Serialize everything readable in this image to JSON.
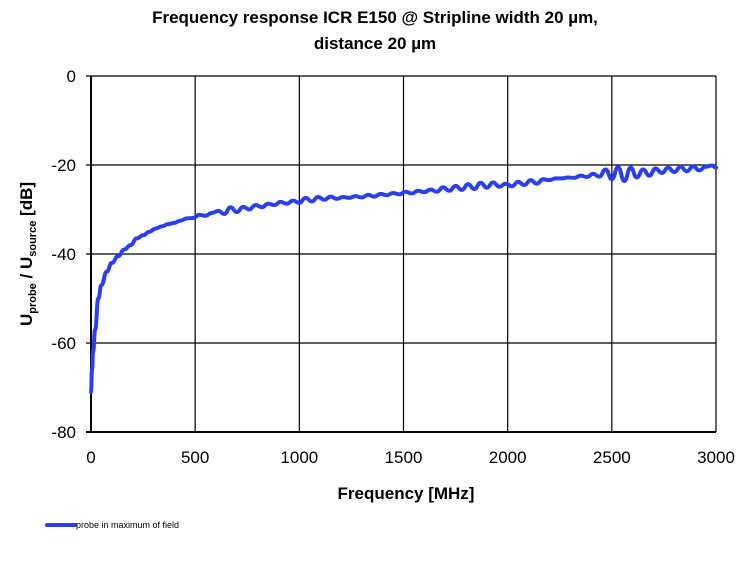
{
  "chart_data": {
    "type": "line",
    "title": [
      "Frequency response ICR E150 @ Stripline  width  20 µm,",
      "distance 20 µm"
    ],
    "xlabel": "Frequency [MHz]",
    "ylabel": {
      "main": "U",
      "sub1": "probe",
      "sep": " / U",
      "sub2": "source",
      "unit": " [dB]"
    },
    "xlim": [
      0,
      3000
    ],
    "ylim": [
      -80,
      0
    ],
    "xticks": [
      0,
      500,
      1000,
      1500,
      2000,
      2500,
      3000
    ],
    "yticks": [
      0,
      -20,
      -40,
      -60,
      -80
    ],
    "grid": true,
    "legend_position": "bottom-left",
    "series": [
      {
        "name": "probe in maximum of field",
        "color": "#2a3ff0",
        "x": [
          0,
          5,
          10,
          20,
          35,
          50,
          75,
          100,
          130,
          160,
          190,
          220,
          250,
          280,
          310,
          340,
          370,
          400,
          430,
          460,
          490,
          520,
          550,
          580,
          610,
          640,
          670,
          700,
          730,
          760,
          790,
          820,
          850,
          880,
          910,
          940,
          970,
          1000,
          1030,
          1060,
          1090,
          1120,
          1150,
          1180,
          1210,
          1240,
          1270,
          1300,
          1330,
          1360,
          1390,
          1420,
          1450,
          1480,
          1510,
          1540,
          1570,
          1600,
          1630,
          1660,
          1690,
          1720,
          1750,
          1780,
          1810,
          1840,
          1870,
          1900,
          1930,
          1960,
          1990,
          2020,
          2050,
          2080,
          2110,
          2140,
          2170,
          2200,
          2230,
          2260,
          2290,
          2320,
          2350,
          2380,
          2410,
          2440,
          2470,
          2500,
          2530,
          2560,
          2590,
          2620,
          2650,
          2680,
          2710,
          2740,
          2770,
          2800,
          2830,
          2860,
          2890,
          2920,
          2950,
          2980,
          3000
        ],
        "y": [
          -71,
          -66,
          -62,
          -57,
          -50,
          -47,
          -44,
          -42,
          -40.5,
          -39,
          -38,
          -36.5,
          -35.8,
          -35,
          -34.3,
          -33.8,
          -33.3,
          -33,
          -32.5,
          -32,
          -31.9,
          -31.2,
          -31.4,
          -30.8,
          -30.3,
          -31,
          -29.5,
          -30.6,
          -29.4,
          -30,
          -29,
          -29.5,
          -28.7,
          -29,
          -28.3,
          -28.7,
          -28,
          -28.5,
          -27.4,
          -28.2,
          -27.2,
          -27.8,
          -27.1,
          -27.6,
          -27.2,
          -27.4,
          -27,
          -27.3,
          -26.7,
          -27.1,
          -26.5,
          -26.8,
          -26.3,
          -26.6,
          -26,
          -26.4,
          -25.8,
          -26.1,
          -25.5,
          -26,
          -25,
          -25.8,
          -24.7,
          -25.6,
          -24.3,
          -25.4,
          -24,
          -25.1,
          -23.9,
          -24.9,
          -24.2,
          -24.8,
          -23.8,
          -24.5,
          -23.4,
          -24.2,
          -23.2,
          -23.4,
          -23,
          -23,
          -22.8,
          -22.9,
          -22.4,
          -22.7,
          -22,
          -22.6,
          -21,
          -23.2,
          -20.5,
          -23.6,
          -20.6,
          -22.8,
          -21,
          -22.4,
          -20.8,
          -21.8,
          -20.6,
          -21.6,
          -20.4,
          -21.4,
          -20.3,
          -21.2,
          -20.4,
          -20.1,
          -20.6
        ]
      }
    ]
  }
}
